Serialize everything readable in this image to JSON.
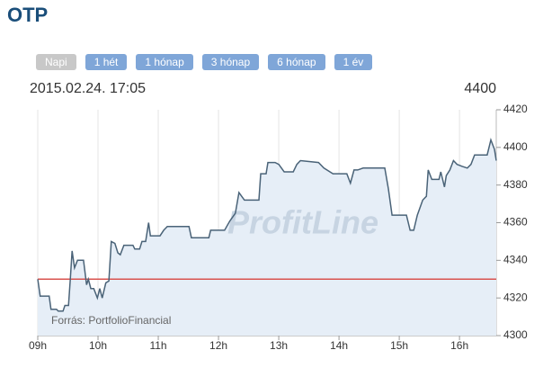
{
  "header": {
    "title": "OTP",
    "periods": [
      "Napi",
      "1 hét",
      "1 hónap",
      "3 hónap",
      "6 hónap",
      "1 év"
    ],
    "active_period": 0,
    "timestamp": "2015.02.24. 17:05",
    "last_value": 4400
  },
  "chart_data": {
    "type": "line",
    "watermark": "ProfitLine",
    "source": "Forrás: PortfolioFinancial",
    "x": [
      9.0,
      9.04,
      9.19,
      9.22,
      9.31,
      9.34,
      9.42,
      9.45,
      9.51,
      9.54,
      9.57,
      9.61,
      9.66,
      9.76,
      9.81,
      9.84,
      9.88,
      9.93,
      9.99,
      10.03,
      10.07,
      10.13,
      10.18,
      10.22,
      10.28,
      10.33,
      10.37,
      10.43,
      10.58,
      10.61,
      10.69,
      10.73,
      10.79,
      10.84,
      10.87,
      11.03,
      11.09,
      11.15,
      11.51,
      11.55,
      11.84,
      11.87,
      12.1,
      12.19,
      12.28,
      12.34,
      12.43,
      12.67,
      12.7,
      12.79,
      12.82,
      12.94,
      13.0,
      13.09,
      13.24,
      13.3,
      13.36,
      13.66,
      13.75,
      13.9,
      14.13,
      14.19,
      14.25,
      14.31,
      14.4,
      14.76,
      14.82,
      14.88,
      15.12,
      15.18,
      15.24,
      15.3,
      15.39,
      15.45,
      15.48,
      15.54,
      15.66,
      15.69,
      15.75,
      15.78,
      15.84,
      15.9,
      15.96,
      16.04,
      16.13,
      16.19,
      16.25,
      16.46,
      16.52,
      16.58,
      16.61
    ],
    "values": [
      4330,
      4321,
      4321,
      4314,
      4314,
      4313,
      4313,
      4316,
      4316,
      4330,
      4345,
      4336,
      4340,
      4340,
      4327,
      4330,
      4325,
      4325,
      4320,
      4325,
      4320,
      4328,
      4329,
      4350,
      4349,
      4344,
      4343,
      4348,
      4348,
      4346,
      4346,
      4350,
      4350,
      4360,
      4353,
      4353,
      4356,
      4358,
      4358,
      4352,
      4352,
      4356,
      4356,
      4361,
      4365,
      4376,
      4372,
      4372,
      4386,
      4386,
      4392,
      4392,
      4391,
      4387,
      4387,
      4391,
      4393,
      4392,
      4389,
      4386,
      4386,
      4381,
      4388,
      4388,
      4389,
      4389,
      4378,
      4364,
      4364,
      4356,
      4356,
      4364,
      4372,
      4374,
      4388,
      4383,
      4383,
      4387,
      4379,
      4385,
      4388,
      4393,
      4391,
      4390,
      4389,
      4391,
      4396,
      4396,
      4404,
      4399,
      4393
    ],
    "color": "#4a6378",
    "area_color": "#e6eef7",
    "reference_value": 4330,
    "reference_color": "#d9534f",
    "xlim": [
      9,
      16.61
    ],
    "xticks": [
      {
        "value": 9,
        "label": "09h"
      },
      {
        "value": 10,
        "label": "10h"
      },
      {
        "value": 11,
        "label": "11h"
      },
      {
        "value": 12,
        "label": "12h"
      },
      {
        "value": 13,
        "label": "13h"
      },
      {
        "value": 14,
        "label": "14h"
      },
      {
        "value": 15,
        "label": "15h"
      },
      {
        "value": 16,
        "label": "16h"
      }
    ],
    "ylim": [
      4300,
      4420
    ],
    "yticks": [
      4300,
      4320,
      4340,
      4360,
      4380,
      4400,
      4420
    ],
    "grid_x": true
  }
}
